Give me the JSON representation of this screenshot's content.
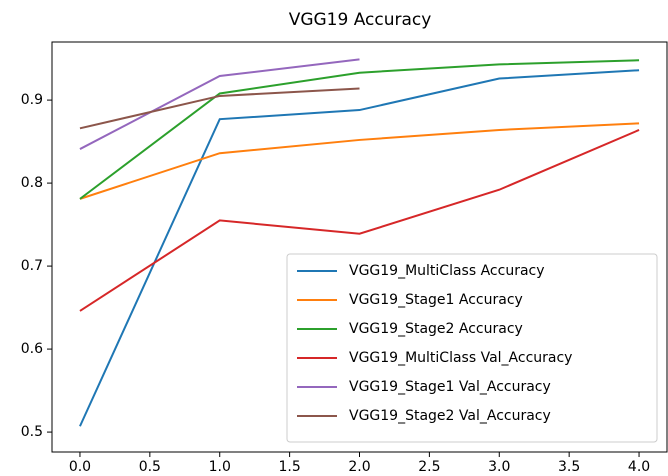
{
  "chart_data": {
    "type": "line",
    "title": "VGG19 Accuracy",
    "x": [
      0,
      1,
      2,
      3,
      4
    ],
    "series": [
      {
        "name": "VGG19_MultiClass Accuracy",
        "color": "#1f77b4",
        "values": [
          0.507,
          0.877,
          0.888,
          0.926,
          0.936
        ]
      },
      {
        "name": "VGG19_Stage1 Accuracy",
        "color": "#ff7f0e",
        "values": [
          0.781,
          0.836,
          0.852,
          0.864,
          0.872
        ]
      },
      {
        "name": "VGG19_Stage2 Accuracy",
        "color": "#2ca02c",
        "values": [
          0.781,
          0.908,
          0.933,
          0.943,
          0.948
        ]
      },
      {
        "name": "VGG19_MultiClass Val_Accuracy",
        "color": "#d62728",
        "values": [
          0.646,
          0.755,
          0.739,
          0.792,
          0.864
        ]
      },
      {
        "name": "VGG19_Stage1 Val_Accuracy",
        "color": "#9467bd",
        "values": [
          0.841,
          0.929,
          0.949,
          null,
          null
        ]
      },
      {
        "name": "VGG19_Stage2 Val_Accuracy",
        "color": "#8c564b",
        "values": [
          0.866,
          0.905,
          0.914,
          null,
          null
        ]
      }
    ],
    "xlim": [
      -0.2,
      4.2
    ],
    "xticks": [
      {
        "value": 0,
        "label": "0.0"
      },
      0.5,
      {
        "value": 1,
        "label": "1.0"
      },
      1.5,
      {
        "value": 2,
        "label": "2.0"
      },
      2.5,
      {
        "value": 3,
        "label": "3.0"
      },
      3.5,
      {
        "value": 4,
        "label": "4.0"
      }
    ],
    "ylim": [
      0.476,
      0.97
    ],
    "yticks": [
      0.5,
      0.6,
      0.7,
      0.8,
      0.9
    ],
    "grid": false,
    "legend": "lower right"
  }
}
